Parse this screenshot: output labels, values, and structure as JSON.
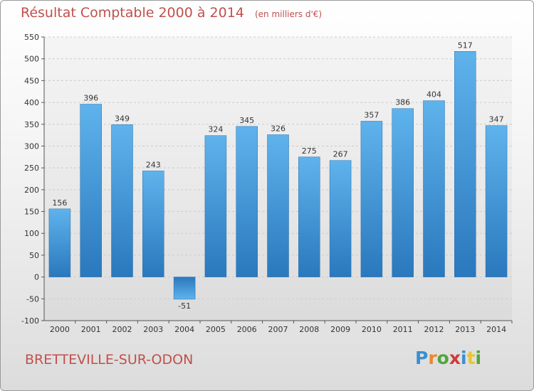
{
  "title": "Résultat Comptable 2000 à 2014",
  "unit_note": "(en milliers d'€)",
  "city": "BRETTEVILLE-SUR-ODON",
  "logo": {
    "text": "Proxiti",
    "letters": [
      "P",
      "r",
      "o",
      "x",
      "i",
      "t",
      "i"
    ]
  },
  "colors": {
    "bar": "#4a9fe0",
    "title": "#c0504d",
    "grid": "#cccccc"
  },
  "chart_data": {
    "type": "bar",
    "title": "Résultat Comptable 2000 à 2014",
    "categories": [
      "2000",
      "2001",
      "2002",
      "2003",
      "2004",
      "2005",
      "2006",
      "2007",
      "2008",
      "2009",
      "2010",
      "2011",
      "2012",
      "2013",
      "2014"
    ],
    "values": [
      156,
      396,
      349,
      243,
      -51,
      324,
      345,
      326,
      275,
      267,
      357,
      386,
      404,
      517,
      347
    ],
    "ylim": [
      -100,
      550
    ],
    "yticks": [
      -100,
      -50,
      0,
      50,
      100,
      150,
      200,
      250,
      300,
      350,
      400,
      450,
      500,
      550
    ],
    "grid": true,
    "data_labels": true
  }
}
